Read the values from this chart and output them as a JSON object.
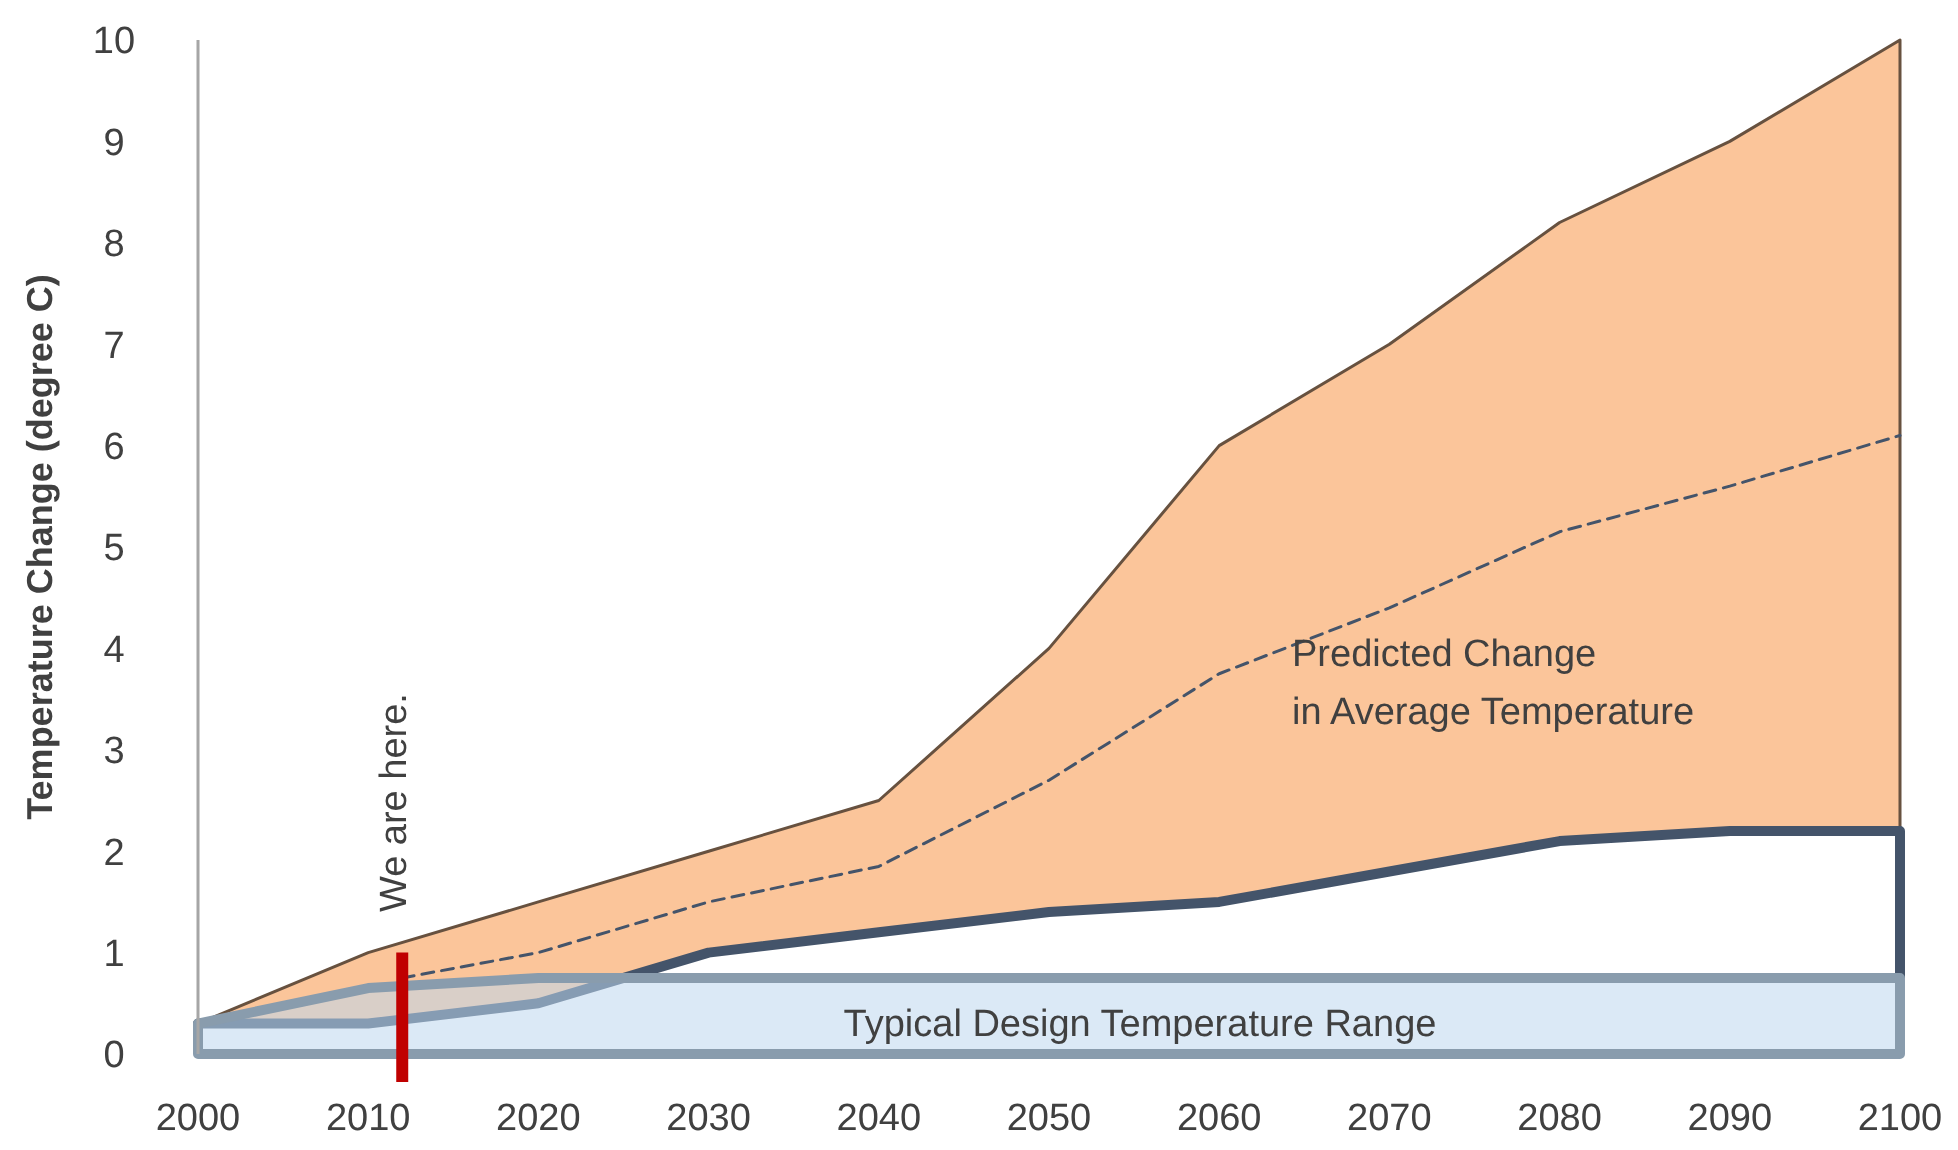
{
  "chart_data": {
    "type": "area",
    "ylabel": "Temperature Change (degree C)",
    "xlim": [
      2000,
      2100
    ],
    "xticks": [
      2000,
      2010,
      2020,
      2030,
      2040,
      2050,
      2060,
      2070,
      2080,
      2090,
      2100
    ],
    "ylim": [
      0,
      10
    ],
    "yticks": [
      0,
      1,
      2,
      3,
      4,
      5,
      6,
      7,
      8,
      9,
      10
    ],
    "grid": false,
    "series": [
      {
        "color": "#fbc59a",
        "x": [
          2000,
          2010,
          2020,
          2030,
          2040,
          2050,
          2060,
          2070,
          2080,
          2090,
          2100
        ],
        "values": [
          0.3,
          1.0,
          1.5,
          2.0,
          2.5,
          4.0,
          6.0,
          7.0,
          8.2,
          9.0,
          10.0
        ]
      },
      {
        "type": "line",
        "color": "#44546a",
        "x": [
          2000,
          2010,
          2020,
          2030,
          2040,
          2050,
          2060,
          2070,
          2080,
          2090,
          2100,
          2100
        ],
        "values": [
          0.3,
          0.3,
          0.5,
          1.0,
          1.2,
          1.4,
          1.5,
          1.8,
          2.1,
          2.2,
          2.2,
          0.75
        ]
      },
      {
        "type": "line",
        "color": "#44546a",
        "line_style": "dashed",
        "x": [
          2012,
          2020,
          2030,
          2040,
          2050,
          2060,
          2070,
          2080,
          2090,
          2100
        ],
        "values": [
          0.75,
          1.0,
          1.5,
          1.85,
          2.7,
          3.75,
          4.4,
          5.15,
          5.6,
          6.1
        ]
      },
      {
        "color": "#bdd7ee",
        "x": [
          2000,
          2010,
          2020,
          2030,
          2040,
          2050,
          2060,
          2070,
          2080,
          2090,
          2100
        ],
        "values": [
          0.3,
          0.65,
          0.75,
          0.75,
          0.75,
          0.75,
          0.75,
          0.75,
          0.75,
          0.75,
          0.75
        ]
      }
    ],
    "ref_lines": [
      {
        "axis": "x",
        "value": 2012,
        "label": "We are here.",
        "color": "#c00000"
      }
    ],
    "annotations": [
      "Predicted Change\nin Average Temperature",
      "Typical Design Temperature Range"
    ]
  }
}
